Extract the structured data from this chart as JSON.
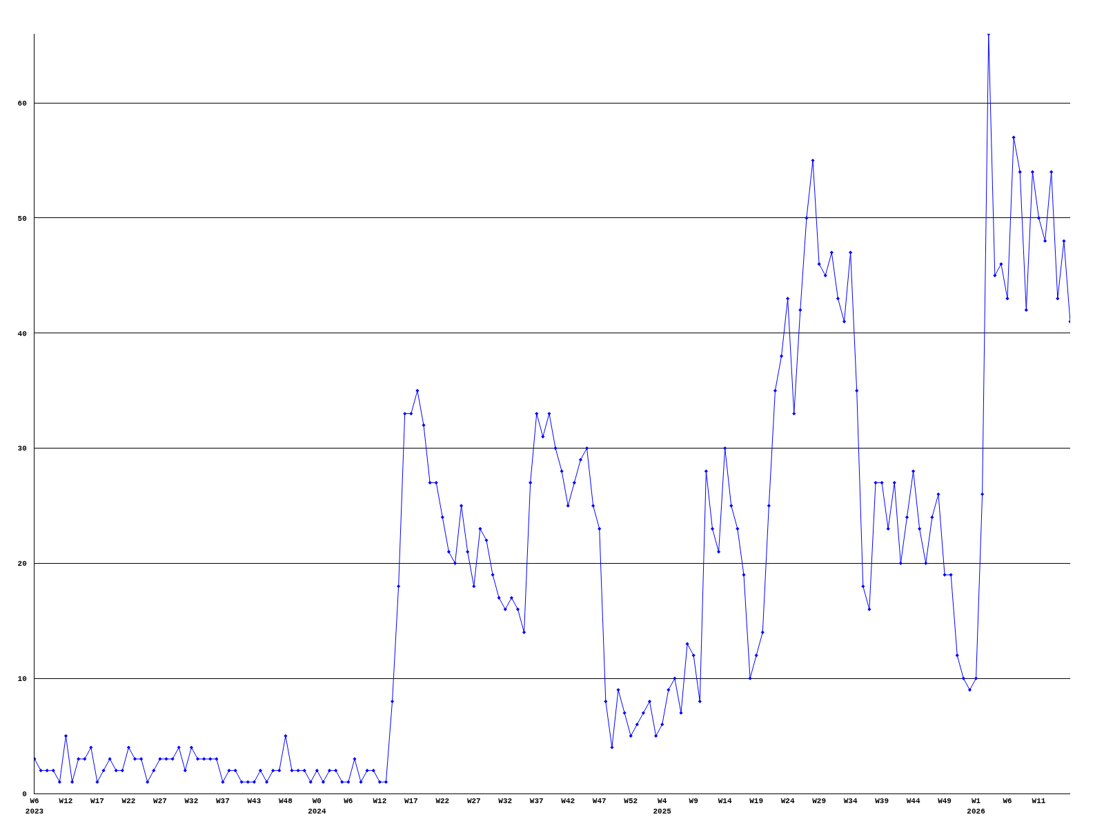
{
  "chart_data": {
    "type": "line",
    "categories": [
      "W6\n2023",
      null,
      null,
      null,
      null,
      "W12",
      null,
      null,
      null,
      null,
      "W17",
      null,
      null,
      null,
      null,
      "W22",
      null,
      null,
      null,
      null,
      "W27",
      null,
      null,
      null,
      null,
      "W32",
      null,
      null,
      null,
      null,
      "W37",
      null,
      null,
      null,
      null,
      "W43",
      null,
      null,
      null,
      null,
      "W48",
      null,
      null,
      null,
      null,
      "W0\n2024",
      null,
      null,
      null,
      null,
      "W6",
      null,
      null,
      null,
      null,
      "W12",
      null,
      null,
      null,
      null,
      "W17",
      null,
      null,
      null,
      null,
      "W22",
      null,
      null,
      null,
      null,
      "W27",
      null,
      null,
      null,
      null,
      "W32",
      null,
      null,
      null,
      null,
      "W37",
      null,
      null,
      null,
      null,
      "W42",
      null,
      null,
      null,
      null,
      "W47",
      null,
      null,
      null,
      null,
      "W52",
      null,
      null,
      null,
      null,
      "W4\n2025",
      null,
      null,
      null,
      null,
      "W9",
      null,
      null,
      null,
      null,
      "W14",
      null,
      null,
      null,
      null,
      "W19",
      null,
      null,
      null,
      null,
      "W24",
      null,
      null,
      null,
      null,
      "W29",
      null,
      null,
      null,
      null,
      "W34",
      null,
      null,
      null,
      null,
      "W39",
      null,
      null,
      null,
      null,
      "W44",
      null,
      null,
      null,
      null,
      "W49",
      null,
      null,
      null,
      null,
      "W1\n2026",
      null,
      null,
      null,
      null,
      "W6",
      null,
      null,
      null,
      null,
      "W11",
      null,
      null,
      null,
      null,
      null
    ],
    "series": [
      {
        "color": "#0000ff",
        "values": [
          3,
          2,
          2,
          2,
          1,
          5,
          1,
          3,
          3,
          4,
          1,
          2,
          3,
          2,
          2,
          4,
          3,
          3,
          1,
          2,
          3,
          3,
          3,
          4,
          2,
          4,
          3,
          3,
          3,
          3,
          1,
          2,
          2,
          1,
          1,
          1,
          2,
          1,
          2,
          2,
          5,
          2,
          2,
          2,
          1,
          2,
          1,
          2,
          2,
          1,
          1,
          3,
          1,
          2,
          2,
          1,
          1,
          8,
          18,
          33,
          33,
          35,
          32,
          27,
          27,
          24,
          21,
          20,
          25,
          21,
          18,
          23,
          22,
          19,
          17,
          16,
          17,
          16,
          14,
          27,
          33,
          31,
          33,
          30,
          28,
          25,
          27,
          29,
          30,
          25,
          23,
          8,
          4,
          9,
          7,
          5,
          6,
          7,
          8,
          5,
          6,
          9,
          10,
          7,
          13,
          12,
          8,
          28,
          23,
          21,
          30,
          25,
          23,
          19,
          10,
          12,
          14,
          25,
          35,
          38,
          43,
          33,
          42,
          50,
          55,
          46,
          45,
          47,
          43,
          41,
          47,
          35,
          18,
          16,
          27,
          27,
          23,
          27,
          20,
          24,
          28,
          23,
          20,
          24,
          26,
          19,
          19,
          12,
          10,
          9,
          10,
          26,
          66,
          45,
          46,
          43,
          57,
          54,
          42,
          54,
          50,
          48,
          54,
          43,
          48,
          41
        ]
      }
    ],
    "ylim": [
      0,
      66
    ],
    "yticks": [
      0,
      10,
      20,
      30,
      40,
      50,
      60
    ],
    "grid": "y",
    "marker": "diamond",
    "line_style": "solid"
  }
}
